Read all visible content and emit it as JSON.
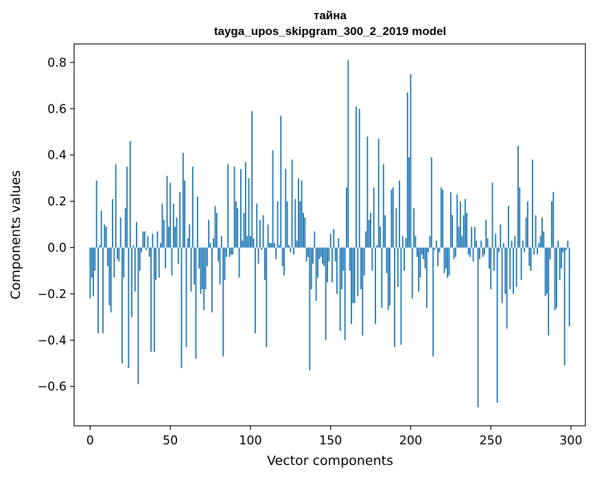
{
  "chart_data": {
    "type": "bar",
    "title": "тайна",
    "subtitle": "tayga_upos_skipgram_300_2_2019 model",
    "xlabel": "Vector components",
    "ylabel": "Components values",
    "xlim": [
      -10,
      309
    ],
    "ylim": [
      -0.77,
      0.88
    ],
    "xticks": [
      0,
      50,
      100,
      150,
      200,
      250,
      300
    ],
    "xtick_labels": [
      "0",
      "50",
      "100",
      "150",
      "200",
      "250",
      "300"
    ],
    "yticks": [
      -0.6,
      -0.4,
      -0.2,
      0.0,
      0.2,
      0.4,
      0.6,
      0.8
    ],
    "ytick_labels": [
      "−0.6",
      "−0.4",
      "−0.2",
      "0.0",
      "0.2",
      "0.4",
      "0.6",
      "0.8"
    ],
    "grid": false,
    "bar_color": "#1f77b4",
    "values": [
      -0.22,
      -0.13,
      -0.21,
      -0.1,
      0.29,
      -0.37,
      0.01,
      0.16,
      -0.37,
      0.1,
      0.09,
      -0.08,
      -0.25,
      -0.28,
      0.21,
      -0.13,
      0.36,
      -0.05,
      -0.06,
      0.13,
      -0.5,
      -0.13,
      0.17,
      0.35,
      -0.52,
      0.46,
      -0.3,
      0.01,
      -0.19,
      0.11,
      -0.59,
      -0.1,
      -0.02,
      0.07,
      0.07,
      -0.01,
      0.05,
      -0.04,
      -0.45,
      0.06,
      -0.45,
      -0.14,
      0.07,
      -0.13,
      0.02,
      0.19,
      0.12,
      -0.09,
      0.31,
      0.09,
      0.28,
      -0.12,
      0.19,
      0.09,
      0.13,
      -0.07,
      0.24,
      -0.52,
      0.41,
      0.29,
      -0.43,
      0.04,
      0.1,
      -0.19,
      0.35,
      -0.16,
      -0.48,
      0.22,
      -0.09,
      -0.2,
      -0.18,
      -0.27,
      -0.18,
      -0.08,
      0.12,
      0.02,
      -0.28,
      0.04,
      0.18,
      0.15,
      -0.06,
      -0.16,
      0.05,
      -0.47,
      -0.14,
      -0.04,
      0.36,
      -0.04,
      -0.03,
      -0.03,
      0.35,
      0.2,
      0.17,
      -0.13,
      0.34,
      0.03,
      0.15,
      0.37,
      0.05,
      0.3,
      0.05,
      0.59,
      0.04,
      -0.37,
      0.19,
      -0.07,
      0.12,
      -0.01,
      0.14,
      -0.14,
      -0.43,
      0.1,
      0.02,
      0.02,
      0.42,
      0.02,
      -0.05,
      0.2,
      0.01,
      0.57,
      -0.08,
      -0.12,
      0.34,
      0.2,
      0.01,
      -0.02,
      0.38,
      -0.03,
      0.21,
      0.03,
      0.3,
      0.2,
      0.29,
      0.15,
      0.13,
      -0.06,
      -0.04,
      -0.53,
      -0.18,
      -0.07,
      0.07,
      -0.23,
      -0.13,
      -0.05,
      -0.04,
      -0.07,
      -0.08,
      -0.4,
      -0.15,
      -0.06,
      0.06,
      -0.15,
      0.08,
      -0.06,
      -0.2,
      0.04,
      -0.36,
      -0.18,
      -0.1,
      -0.4,
      0.26,
      0.81,
      -0.1,
      -0.33,
      -0.24,
      -0.24,
      0.61,
      -0.21,
      0.6,
      -0.18,
      -0.38,
      -0.12,
      0.07,
      0.48,
      0.12,
      0.15,
      -0.1,
      0.26,
      -0.33,
      0.01,
      0.47,
      0.09,
      -0.26,
      0.36,
      0.14,
      -0.11,
      -0.27,
      -0.25,
      0.25,
      0.26,
      -0.43,
      0.17,
      -0.17,
      0.29,
      -0.42,
      0.05,
      -0.1,
      0.04,
      0.67,
      0.39,
      0.75,
      -0.22,
      0.17,
      0.05,
      -0.04,
      -0.19,
      -0.13,
      -0.03,
      -0.05,
      -0.09,
      -0.26,
      -0.02,
      0.05,
      0.39,
      -0.47,
      -0.01,
      0.03,
      -0.08,
      -0.02,
      0.26,
      0.25,
      -0.11,
      -0.09,
      -0.13,
      -0.12,
      0.24,
      0.14,
      -0.05,
      -0.04,
      0.23,
      0.09,
      0.2,
      0.05,
      0.14,
      0.21,
      0.15,
      -0.03,
      -0.04,
      0.09,
      -0.06,
      0.09,
      0.03,
      -0.69,
      -0.05,
      0.03,
      -0.04,
      -0.03,
      0.12,
      0.04,
      -0.09,
      -0.18,
      0.28,
      -0.1,
      0.06,
      -0.67,
      -0.02,
      0.1,
      -0.24,
      0.02,
      -0.2,
      -0.35,
      0.18,
      -0.18,
      0.03,
      -0.2,
      0.05,
      -0.17,
      0.44,
      0.26,
      -0.14,
      0.03,
      -0.02,
      0.13,
      0.2,
      -0.08,
      -0.1,
      0.38,
      -0.03,
      0.14,
      -0.03,
      0.02,
      0.05,
      0.13,
      0.07,
      -0.21,
      -0.2,
      -0.38,
      -0.05,
      0.2,
      0.24,
      -0.27,
      -0.26,
      0.03,
      -0.14,
      -0.09,
      -0.02,
      -0.51,
      -0.01,
      0.03,
      -0.34
    ]
  }
}
